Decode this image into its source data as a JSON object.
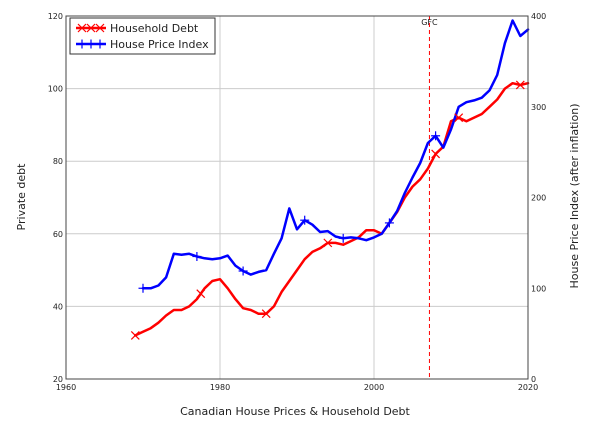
{
  "chart_data": {
    "type": "line",
    "title": "",
    "xlabel": "Canadian House Prices & Household Debt",
    "ylabel": "Private debt",
    "y2label": "House Price Index (after inflation)",
    "xlim": [
      1960,
      2020
    ],
    "ylim": [
      20,
      120
    ],
    "y2lim": [
      0,
      400
    ],
    "grid": true,
    "legend": "top-left",
    "x_ticks": [
      "1960",
      "1980",
      "2000",
      "2020"
    ],
    "y_ticks": [
      "20",
      "40",
      "60",
      "80",
      "100",
      "120"
    ],
    "y2_ticks": [
      "0",
      "100",
      "200",
      "300",
      "400"
    ],
    "annotation": {
      "label": "GFC",
      "x": 2007.2
    },
    "colors": {
      "debt": "#ff0000",
      "hpi": "#0000ff",
      "gfc": "#ff0000",
      "grid": "#cccccc"
    },
    "series": [
      {
        "name": "Household Debt",
        "axis": "left",
        "marker": "x",
        "markers_at": [
          1969,
          1977.5,
          1986,
          1994,
          2008,
          2011,
          2019
        ],
        "x": [
          1969,
          1970,
          1971,
          1972,
          1973,
          1974,
          1975,
          1976,
          1977,
          1978,
          1979,
          1980,
          1981,
          1982,
          1983,
          1984,
          1985,
          1986,
          1987,
          1988,
          1989,
          1990,
          1991,
          1992,
          1993,
          1994,
          1995,
          1996,
          1997,
          1998,
          1999,
          2000,
          2001,
          2002,
          2003,
          2004,
          2005,
          2006,
          2007,
          2008,
          2009,
          2010,
          2011,
          2012,
          2013,
          2014,
          2015,
          2016,
          2017,
          2018,
          2019,
          2020
        ],
        "values": [
          32,
          33,
          34,
          35.5,
          37.5,
          39,
          39,
          40,
          42,
          45,
          47,
          47.5,
          45,
          42,
          39.5,
          39,
          38,
          38,
          40,
          44,
          47,
          50,
          53,
          55,
          56,
          57.5,
          57.5,
          57,
          58,
          59,
          61,
          61,
          60,
          63,
          66,
          70,
          73,
          75,
          78,
          82,
          84,
          91,
          92,
          91,
          92,
          93,
          95,
          97,
          100,
          101.5,
          101,
          101.5
        ]
      },
      {
        "name": "House Price Index",
        "axis": "right",
        "marker": "+",
        "markers_at": [
          1970,
          1977,
          1983,
          1991,
          1996,
          2002,
          2008
        ],
        "x": [
          1970,
          1971,
          1972,
          1973,
          1974,
          1975,
          1976,
          1977,
          1978,
          1979,
          1980,
          1981,
          1982,
          1983,
          1984,
          1985,
          1986,
          1987,
          1988,
          1989,
          1990,
          1991,
          1992,
          1993,
          1994,
          1995,
          1996,
          1997,
          1998,
          1999,
          2000,
          2001,
          2002,
          2003,
          2004,
          2005,
          2006,
          2007,
          2008,
          2009,
          2010,
          2011,
          2012,
          2013,
          2014,
          2015,
          2016,
          2017,
          2018,
          2019,
          2020
        ],
        "values": [
          100,
          100,
          103,
          112,
          138,
          137,
          138,
          135,
          133,
          132,
          133,
          136,
          125,
          119,
          115,
          118,
          120,
          138,
          155,
          188,
          165,
          175,
          170,
          162,
          163,
          157,
          155,
          156,
          155,
          153,
          156,
          160,
          172,
          185,
          205,
          222,
          238,
          260,
          268,
          255,
          275,
          300,
          305,
          307,
          310,
          318,
          335,
          370,
          395,
          378,
          385
        ]
      }
    ]
  }
}
